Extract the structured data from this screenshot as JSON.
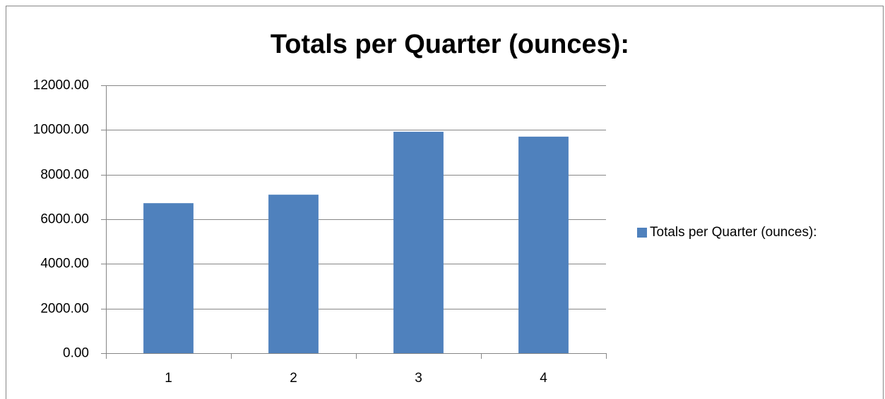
{
  "chart_data": {
    "type": "bar",
    "title": "Totals per Quarter (ounces):",
    "categories": [
      "1",
      "2",
      "3",
      "4"
    ],
    "series": [
      {
        "name": "Totals per Quarter (ounces):",
        "color": "#4f81bd",
        "values": [
          6720,
          7100,
          9920,
          9700
        ]
      }
    ],
    "ylim": [
      0,
      12000
    ],
    "yticks": [
      {
        "value": 0,
        "label": "0.00"
      },
      {
        "value": 2000,
        "label": "2000.00"
      },
      {
        "value": 4000,
        "label": "4000.00"
      },
      {
        "value": 6000,
        "label": "6000.00"
      },
      {
        "value": 8000,
        "label": "8000.00"
      },
      {
        "value": 10000,
        "label": "10000.00"
      },
      {
        "value": 12000,
        "label": "12000.00"
      }
    ],
    "grid": true,
    "legend": "right"
  }
}
